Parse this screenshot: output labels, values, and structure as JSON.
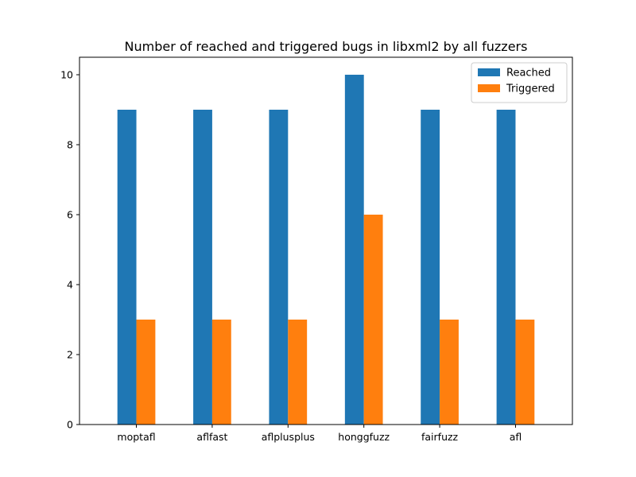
{
  "chart_data": {
    "type": "bar",
    "title": "Number of reached and triggered bugs in libxml2 by all fuzzers",
    "xlabel": "",
    "ylabel": "",
    "categories": [
      "moptafl",
      "aflfast",
      "aflplusplus",
      "honggfuzz",
      "fairfuzz",
      "afl"
    ],
    "series": [
      {
        "name": "Reached",
        "color": "#1f77b4",
        "values": [
          9,
          9,
          9,
          10,
          9,
          9
        ]
      },
      {
        "name": "Triggered",
        "color": "#ff7f0e",
        "values": [
          3,
          3,
          3,
          6,
          3,
          3
        ]
      }
    ],
    "ylim": [
      0,
      10.5
    ],
    "yticks": [
      0,
      2,
      4,
      6,
      8,
      10
    ],
    "grid": false,
    "legend_position": "top-right"
  }
}
